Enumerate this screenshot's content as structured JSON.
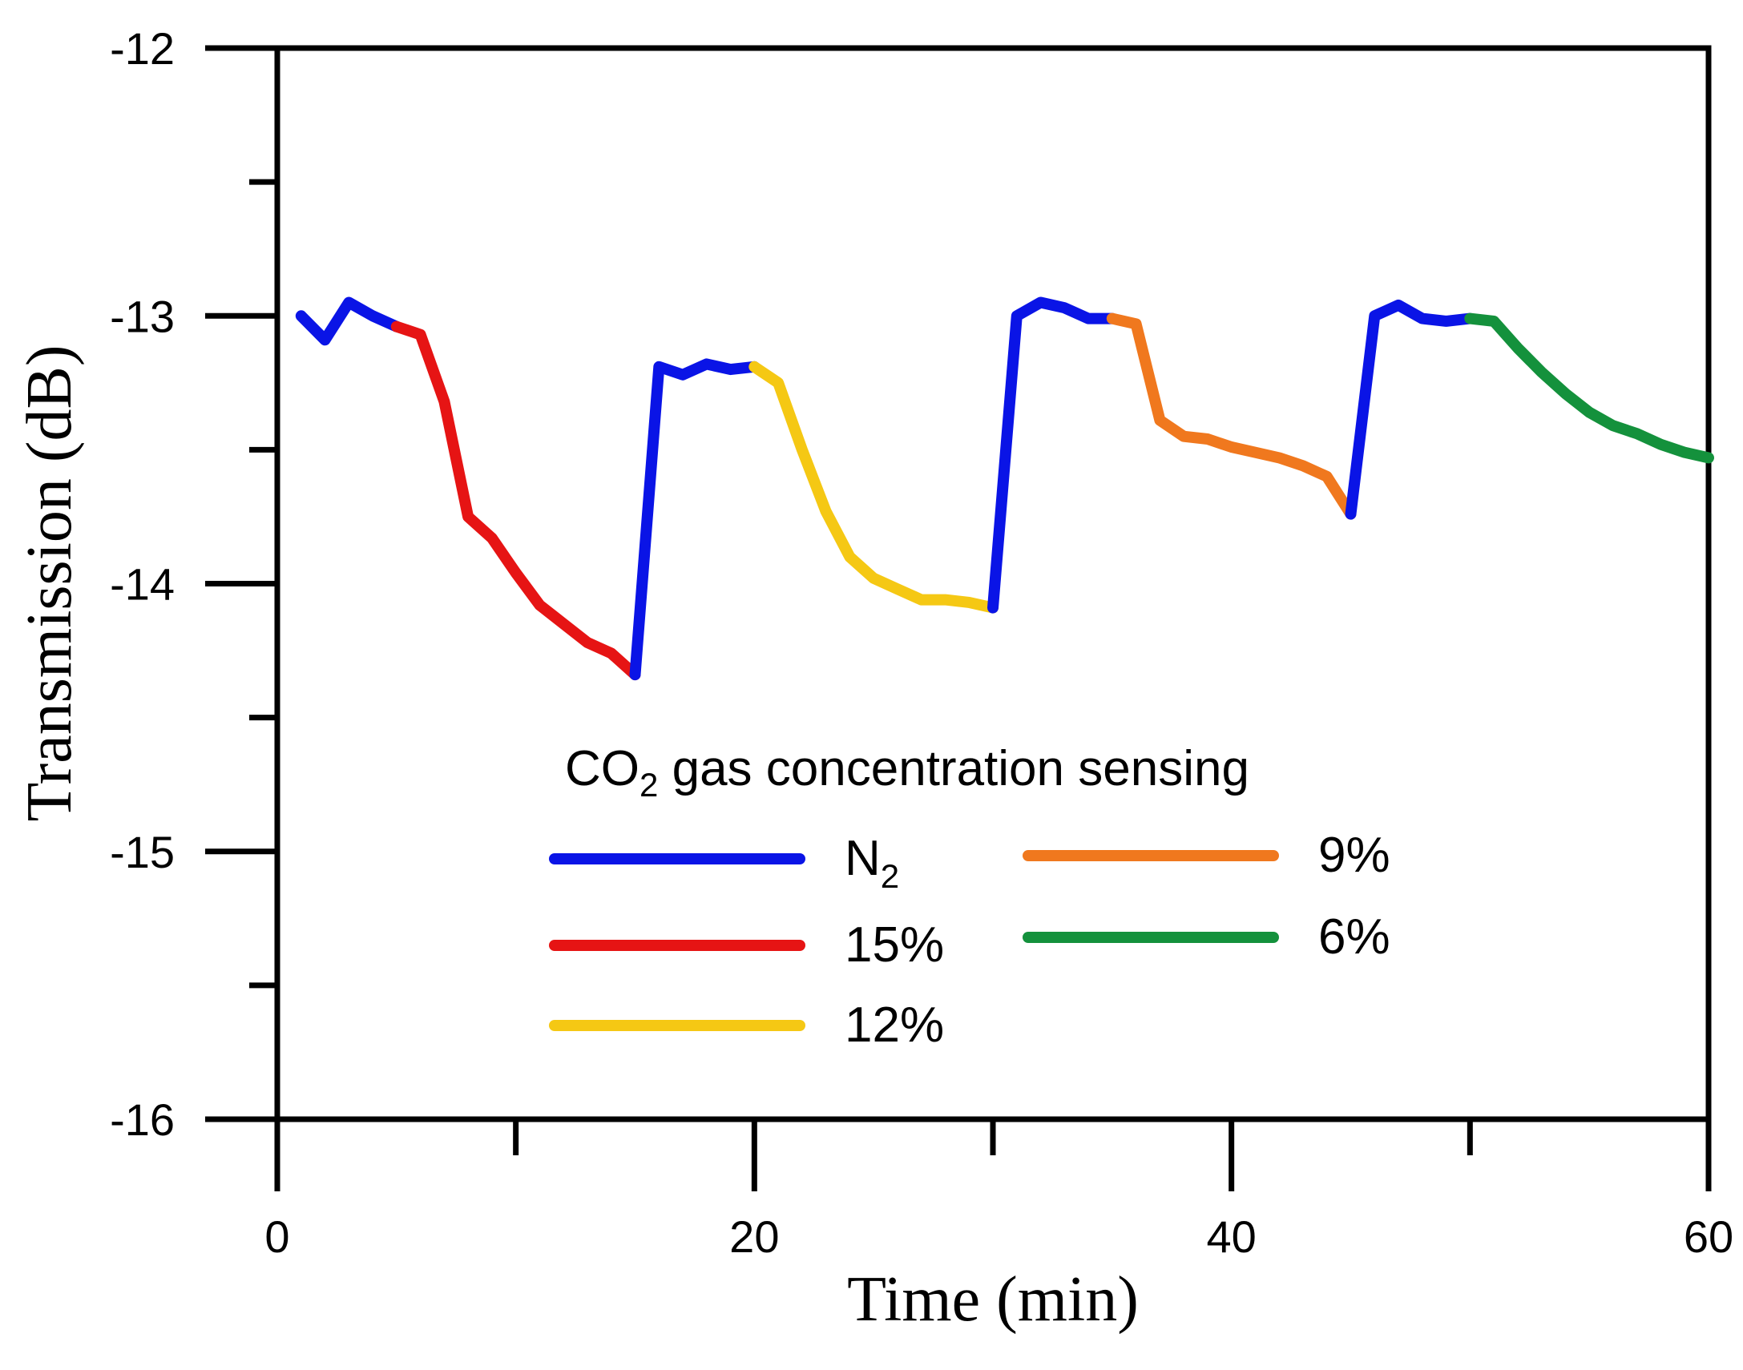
{
  "chart_data": {
    "type": "line",
    "xlabel": "Time (min)",
    "ylabel": "Transmission (dB)",
    "xlim": [
      0,
      60
    ],
    "ylim": [
      -16,
      -12
    ],
    "x_ticks": [
      "0",
      "20",
      "40",
      "60"
    ],
    "y_ticks": [
      "-12",
      "-13",
      "-14",
      "-15",
      "-16"
    ],
    "grid": false,
    "legend": {
      "title_main": "CO",
      "title_sub": "2",
      "title_rest": " gas concentration sensing",
      "position": "lower-center",
      "entries": [
        {
          "label": "N",
          "sub": "2",
          "color": "#0a14e6"
        },
        {
          "label": "15%",
          "sub": "",
          "color": "#e61414"
        },
        {
          "label": "12%",
          "sub": "",
          "color": "#f5c814"
        },
        {
          "label": "9%",
          "sub": "",
          "color": "#f0781e"
        },
        {
          "label": "6%",
          "sub": "",
          "color": "#14913c"
        }
      ]
    },
    "series": [
      {
        "name": "N2",
        "color": "#0a14e6",
        "x": [
          1,
          2,
          3,
          4,
          5
        ],
        "y": [
          -13.0,
          -13.09,
          -12.95,
          -13.0,
          -13.04
        ]
      },
      {
        "name": "15%",
        "color": "#e61414",
        "x": [
          5,
          6,
          7,
          8,
          9,
          10,
          11,
          12,
          13,
          14,
          15
        ],
        "y": [
          -13.04,
          -13.07,
          -13.32,
          -13.75,
          -13.83,
          -13.96,
          -14.08,
          -14.15,
          -14.22,
          -14.26,
          -14.34
        ]
      },
      {
        "name": "N2",
        "color": "#0a14e6",
        "x": [
          15,
          16,
          17,
          18,
          19,
          20
        ],
        "y": [
          -14.34,
          -13.19,
          -13.22,
          -13.18,
          -13.2,
          -13.19
        ]
      },
      {
        "name": "12%",
        "color": "#f5c814",
        "x": [
          20,
          21,
          22,
          23,
          24,
          25,
          26,
          27,
          28,
          29,
          30
        ],
        "y": [
          -13.19,
          -13.25,
          -13.5,
          -13.73,
          -13.9,
          -13.98,
          -14.02,
          -14.06,
          -14.06,
          -14.07,
          -14.09
        ]
      },
      {
        "name": "N2",
        "color": "#0a14e6",
        "x": [
          30,
          31,
          32,
          33,
          34,
          35
        ],
        "y": [
          -14.09,
          -13.0,
          -12.95,
          -12.97,
          -13.01,
          -13.01
        ]
      },
      {
        "name": "9%",
        "color": "#f0781e",
        "x": [
          35,
          36,
          37,
          38,
          39,
          40,
          41,
          42,
          43,
          44,
          45
        ],
        "y": [
          -13.01,
          -13.03,
          -13.39,
          -13.45,
          -13.46,
          -13.49,
          -13.51,
          -13.53,
          -13.56,
          -13.6,
          -13.74
        ]
      },
      {
        "name": "N2",
        "color": "#0a14e6",
        "x": [
          45,
          46,
          47,
          48,
          49,
          50
        ],
        "y": [
          -13.74,
          -13.0,
          -12.96,
          -13.01,
          -13.02,
          -13.01
        ]
      },
      {
        "name": "6%",
        "color": "#14913c",
        "x": [
          50,
          51,
          52,
          53,
          54,
          55,
          56,
          57,
          58,
          59,
          60
        ],
        "y": [
          -13.01,
          -13.02,
          -13.12,
          -13.21,
          -13.29,
          -13.36,
          -13.41,
          -13.44,
          -13.48,
          -13.51,
          -13.53
        ]
      }
    ]
  }
}
